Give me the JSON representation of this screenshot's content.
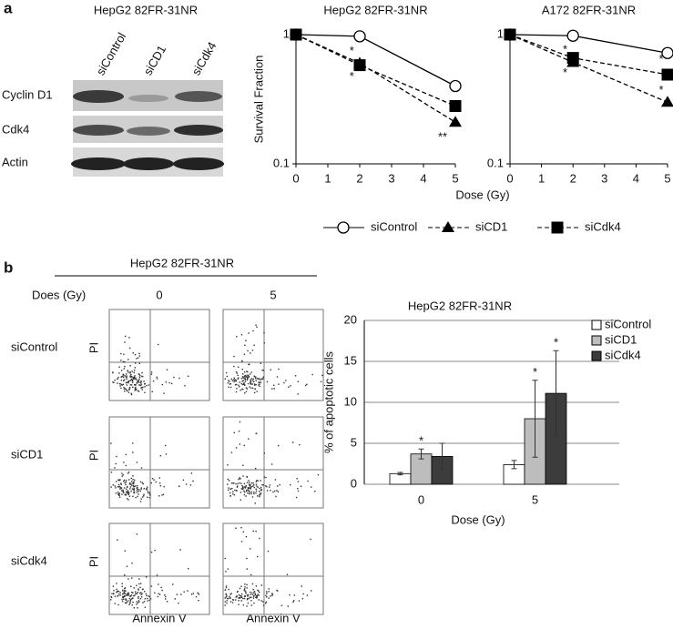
{
  "panel_labels": [
    "a",
    "b"
  ],
  "blot": {
    "title": "HepG2 82FR-31NR",
    "lanes": [
      "siControl",
      "siCD1",
      "siCdk4"
    ],
    "rows": [
      "Cyclin D1",
      "Cdk4",
      "Actin"
    ]
  },
  "flow": {
    "title": "HepG2 82FR-31NR",
    "dose_label": "Does (Gy)",
    "doses": [
      "0",
      "5"
    ],
    "rows": [
      "siControl",
      "siCD1",
      "siCdk4"
    ],
    "y_label": "PI",
    "x_label": "Annexin V"
  },
  "chart_data": [
    {
      "type": "line",
      "title": "HepG2 82FR-31NR",
      "ylabel": "Survival Fraction",
      "xlabel": "Dose (Gy)",
      "log_y": true,
      "x": [
        0,
        2,
        5
      ],
      "xlim": [
        0,
        5
      ],
      "xticks": [
        0,
        1,
        2,
        3,
        4,
        5
      ],
      "ylim": [
        0.1,
        1
      ],
      "yticks": [
        0.1,
        1
      ],
      "series": [
        {
          "name": "siControl",
          "color": "#000000",
          "marker": "circle-open",
          "dash": false,
          "values": [
            1,
            0.97,
            0.4
          ]
        },
        {
          "name": "siCD1",
          "color": "#000000",
          "marker": "triangle",
          "dash": true,
          "values": [
            1,
            0.6,
            0.21
          ]
        },
        {
          "name": "siCdk4",
          "color": "#000000",
          "marker": "square",
          "dash": true,
          "values": [
            1,
            0.58,
            0.28
          ]
        }
      ],
      "annotations": [
        {
          "text": "*",
          "x": 1.75,
          "y": 0.74
        },
        {
          "text": "*",
          "x": 1.75,
          "y": 0.47
        },
        {
          "text": "**",
          "x": 4.6,
          "y": 0.16
        }
      ]
    },
    {
      "type": "line",
      "title": "A172 82FR-31NR",
      "log_y": true,
      "x": [
        0,
        2,
        5
      ],
      "xlim": [
        0,
        5
      ],
      "xticks": [
        0,
        1,
        2,
        3,
        4,
        5
      ],
      "ylim": [
        0.1,
        1
      ],
      "yticks": [
        0.1,
        1
      ],
      "series": [
        {
          "name": "siControl",
          "color": "#000000",
          "marker": "circle-open",
          "dash": false,
          "values": [
            1,
            0.98,
            0.72
          ]
        },
        {
          "name": "siCD1",
          "color": "#000000",
          "marker": "triangle",
          "dash": true,
          "values": [
            1,
            0.61,
            0.3
          ]
        },
        {
          "name": "siCdk4",
          "color": "#000000",
          "marker": "square",
          "dash": true,
          "values": [
            1,
            0.66,
            0.49
          ]
        }
      ],
      "annotations": [
        {
          "text": "*",
          "x": 1.75,
          "y": 0.76
        },
        {
          "text": "*",
          "x": 1.75,
          "y": 0.5
        },
        {
          "text": "*",
          "x": 4.8,
          "y": 0.64
        },
        {
          "text": "*",
          "x": 4.8,
          "y": 0.37
        }
      ]
    },
    {
      "type": "bar",
      "title": "HepG2 82FR-31NR",
      "ylabel": "% of apoptotic cells",
      "xlabel": "Dose (Gy)",
      "grid": true,
      "categories": [
        "0",
        "5"
      ],
      "ylim": [
        0,
        20
      ],
      "yticks": [
        0,
        5,
        10,
        15,
        20
      ],
      "series": [
        {
          "name": "siControl",
          "color": "#ffffff",
          "values": [
            1.3,
            2.4
          ],
          "errors": [
            0.15,
            0.5
          ]
        },
        {
          "name": "siCD1",
          "color": "#bdbdbd",
          "values": [
            3.7,
            8.0
          ],
          "errors": [
            0.6,
            4.7
          ]
        },
        {
          "name": "siCdk4",
          "color": "#3c3c3c",
          "values": [
            3.4,
            11.1
          ],
          "errors": [
            1.6,
            5.2
          ]
        }
      ],
      "annotations": [
        {
          "text": "*",
          "series": 1,
          "category": "0"
        },
        {
          "text": "*",
          "series": 1,
          "category": "5"
        },
        {
          "text": "*",
          "series": 2,
          "category": "5"
        }
      ]
    }
  ]
}
